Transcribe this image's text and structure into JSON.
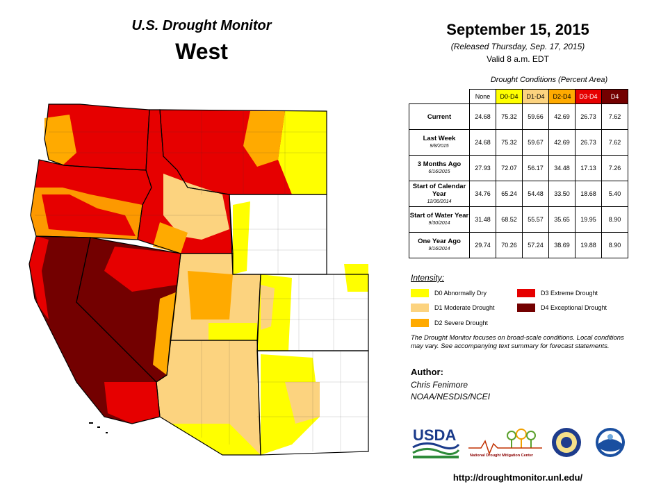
{
  "header": {
    "map_title": "U.S. Drought Monitor",
    "region": "West",
    "date": "September 15, 2015",
    "released": "(Released Thursday, Sep. 17, 2015)",
    "valid": "Valid  8 a.m. EDT"
  },
  "table": {
    "caption": "Drought Conditions (Percent Area)",
    "columns": [
      "None",
      "D0-D4",
      "D1-D4",
      "D2-D4",
      "D3-D4",
      "D4"
    ],
    "column_colors": [
      "#ffffff",
      "#ffff00",
      "#fcd37f",
      "#ffaa00",
      "#e60000",
      "#730000"
    ],
    "rows": [
      {
        "label": "Current",
        "sub": "",
        "values": [
          "24.68",
          "75.32",
          "59.66",
          "42.69",
          "26.73",
          "7.62"
        ]
      },
      {
        "label": "Last Week",
        "sub": "9/8/2015",
        "values": [
          "24.68",
          "75.32",
          "59.67",
          "42.69",
          "26.73",
          "7.62"
        ]
      },
      {
        "label": "3 Months Ago",
        "sub": "6/16/2015",
        "values": [
          "27.93",
          "72.07",
          "56.17",
          "34.48",
          "17.13",
          "7.26"
        ]
      },
      {
        "label": "Start of Calendar Year",
        "sub": "12/30/2014",
        "values": [
          "34.76",
          "65.24",
          "54.48",
          "33.50",
          "18.68",
          "5.40"
        ]
      },
      {
        "label": "Start of Water Year",
        "sub": "9/30/2014",
        "values": [
          "31.48",
          "68.52",
          "55.57",
          "35.65",
          "19.95",
          "8.90"
        ]
      },
      {
        "label": "One Year Ago",
        "sub": "9/16/2014",
        "values": [
          "29.74",
          "70.26",
          "57.24",
          "38.69",
          "19.88",
          "8.90"
        ]
      }
    ]
  },
  "legend": {
    "title": "Intensity:",
    "items": [
      {
        "label": "D0 Abnormally Dry",
        "color": "#ffff00"
      },
      {
        "label": "D1 Moderate Drought",
        "color": "#fcd37f"
      },
      {
        "label": "D2 Severe Drought",
        "color": "#ffaa00"
      },
      {
        "label": "D3 Extreme Drought",
        "color": "#e60000"
      },
      {
        "label": "D4 Exceptional Drought",
        "color": "#730000"
      }
    ]
  },
  "note": "The Drought Monitor focuses on broad-scale conditions. Local conditions may vary. See accompanying text summary for forecast statements.",
  "author": {
    "heading": "Author:",
    "name": "Chris Fenimore",
    "org": "NOAA/NESDIS/NCEI"
  },
  "logos": {
    "usda": "USDA",
    "ndmc": "National Drought Mitigation Center"
  },
  "url": "http://droughtmonitor.unl.edu/"
}
